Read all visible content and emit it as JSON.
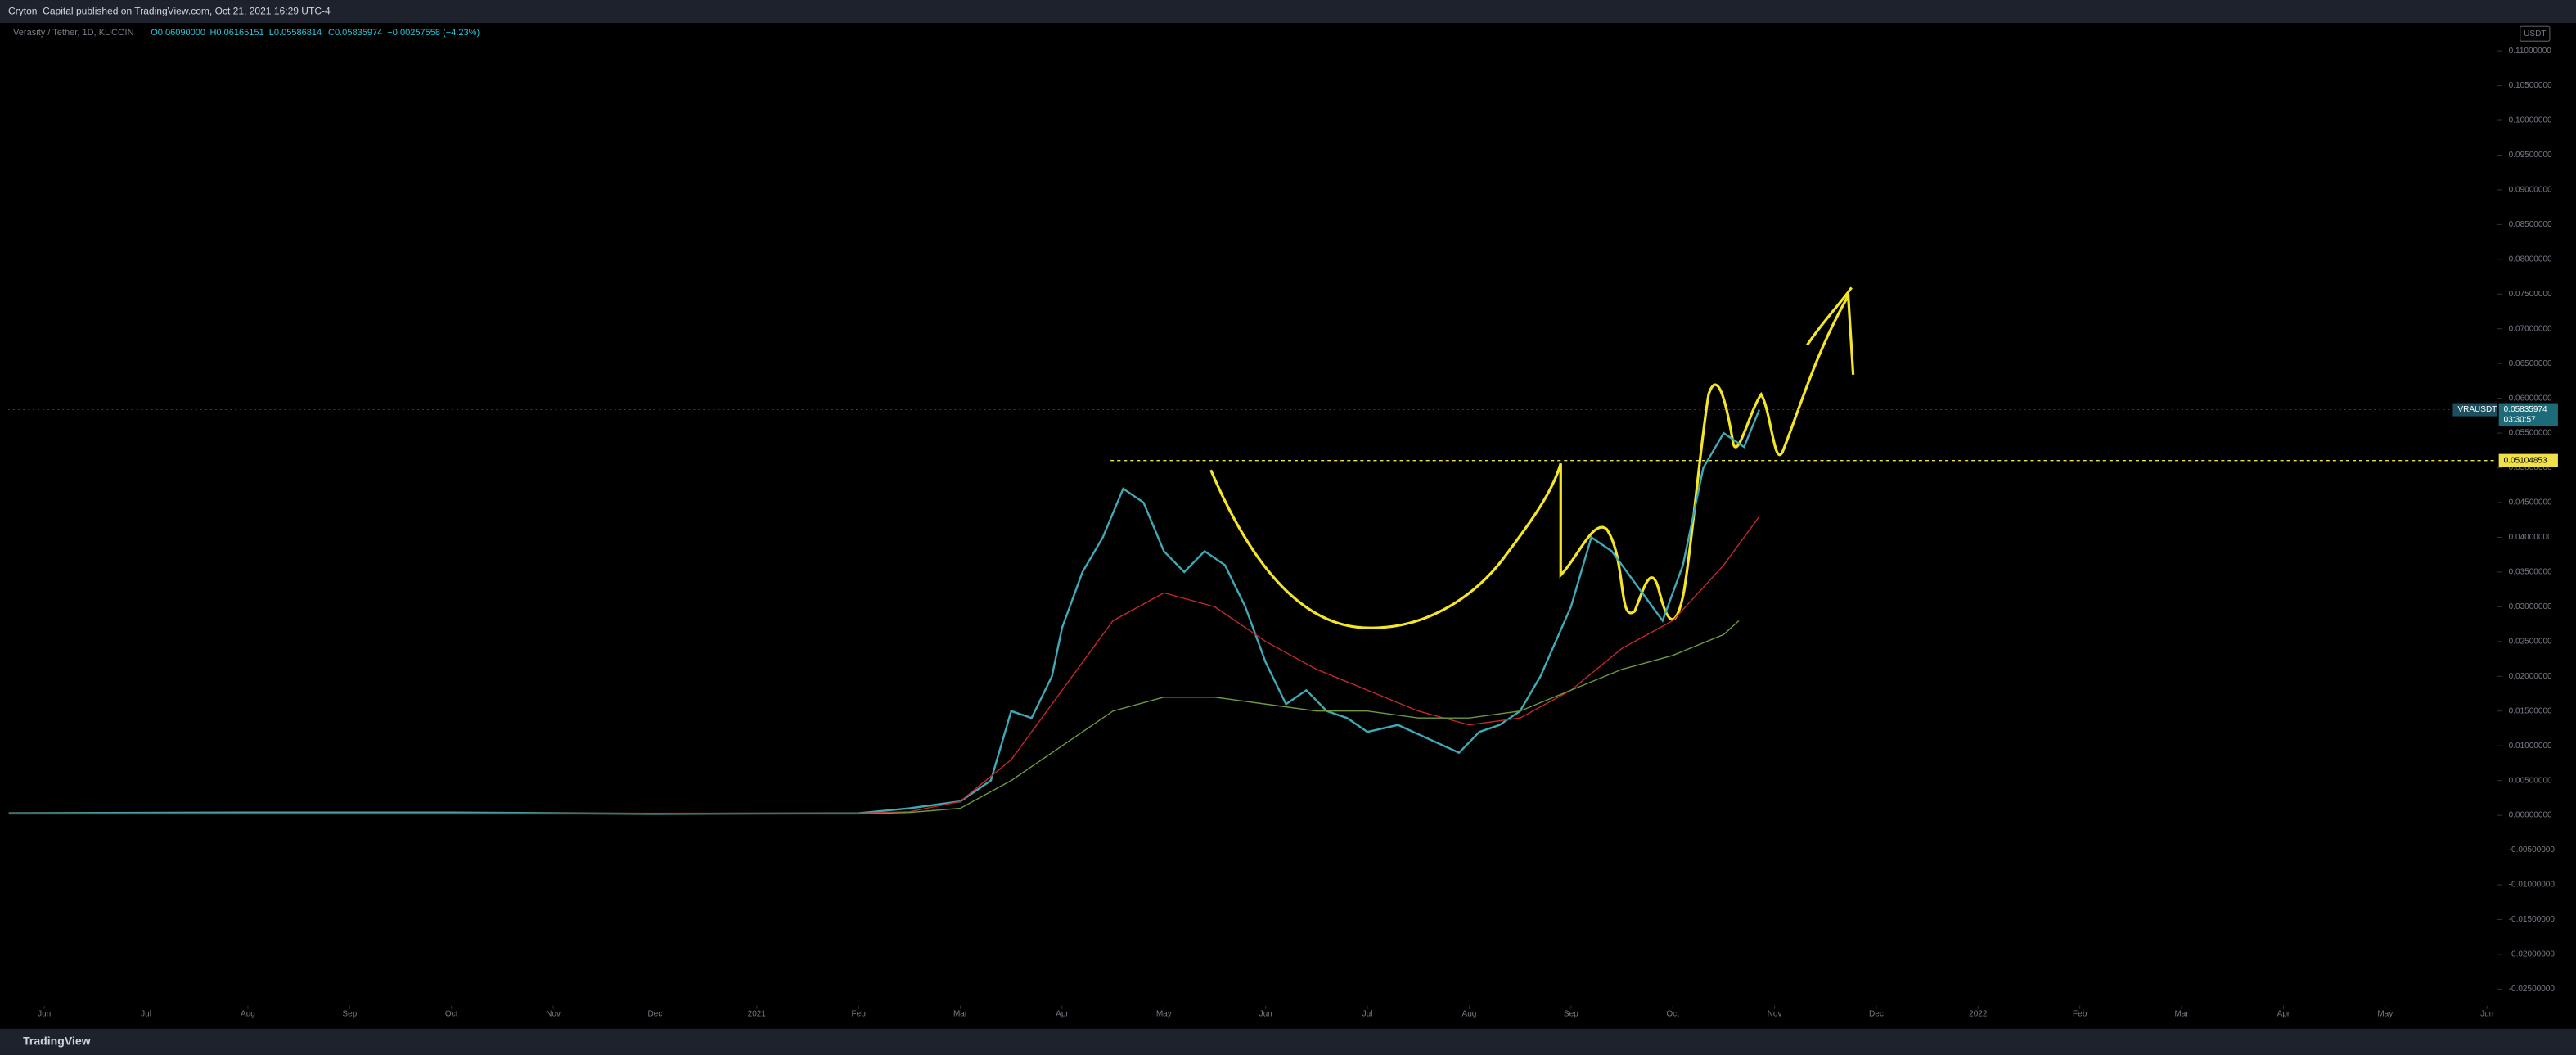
{
  "header": {
    "publisher": "Cryton_Capital published on TradingView.com, Oct 21, 2021 16:29 UTC-4",
    "symbol": "Verasity / Tether, 1D, KUCOIN",
    "ohlc": [
      "O0.06090000",
      "H0.06165151",
      "L0.05586814",
      "C0.05835974",
      "−0.00257558 (−4.23%)"
    ],
    "currency": "USDT",
    "ticker": "VRAUSDT",
    "countdown": "03:30:57",
    "footer": "TradingView"
  },
  "chart_data": {
    "type": "line",
    "xlim": [
      -0.355,
      24.1
    ],
    "ylim": [
      -0.0274,
      0.114
    ],
    "xticks": [
      {
        "value": 0,
        "label": "Jun"
      },
      {
        "value": 1,
        "label": "Jul"
      },
      {
        "value": 2,
        "label": "Aug"
      },
      {
        "value": 3,
        "label": "Sep"
      },
      {
        "value": 4,
        "label": "Oct"
      },
      {
        "value": 5,
        "label": "Nov"
      },
      {
        "value": 6,
        "label": "Dec"
      },
      {
        "value": 7,
        "label": "2021"
      },
      {
        "value": 8,
        "label": "Feb"
      },
      {
        "value": 9,
        "label": "Mar"
      },
      {
        "value": 10,
        "label": "Apr"
      },
      {
        "value": 11,
        "label": "May"
      },
      {
        "value": 12,
        "label": "Jun"
      },
      {
        "value": 13,
        "label": "Jul"
      },
      {
        "value": 14,
        "label": "Aug"
      },
      {
        "value": 15,
        "label": "Sep"
      },
      {
        "value": 16,
        "label": "Oct"
      },
      {
        "value": 17,
        "label": "Nov"
      },
      {
        "value": 18,
        "label": "Dec"
      },
      {
        "value": 19,
        "label": "2022"
      },
      {
        "value": 20,
        "label": "Feb"
      },
      {
        "value": 21,
        "label": "Mar"
      },
      {
        "value": 22,
        "label": "Apr"
      },
      {
        "value": 23,
        "label": "May"
      },
      {
        "value": 24,
        "label": "Jun"
      }
    ],
    "yticks": [
      {
        "value": 0.11,
        "label": "0.11000000"
      },
      {
        "value": 0.105,
        "label": "0.10500000"
      },
      {
        "value": 0.1,
        "label": "0.10000000"
      },
      {
        "value": 0.095,
        "label": "0.09500000"
      },
      {
        "value": 0.09,
        "label": "0.09000000"
      },
      {
        "value": 0.085,
        "label": "0.08500000"
      },
      {
        "value": 0.08,
        "label": "0.08000000"
      },
      {
        "value": 0.075,
        "label": "0.07500000"
      },
      {
        "value": 0.07,
        "label": "0.07000000"
      },
      {
        "value": 0.065,
        "label": "0.06500000"
      },
      {
        "value": 0.06,
        "label": "0.06000000"
      },
      {
        "value": 0.055,
        "label": "0.05500000"
      },
      {
        "value": 0.05,
        "label": "0.05000000"
      },
      {
        "value": 0.045,
        "label": "0.04500000"
      },
      {
        "value": 0.04,
        "label": "0.04000000"
      },
      {
        "value": 0.035,
        "label": "0.03500000"
      },
      {
        "value": 0.03,
        "label": "0.03000000"
      },
      {
        "value": 0.025,
        "label": "0.02500000"
      },
      {
        "value": 0.02,
        "label": "0.02000000"
      },
      {
        "value": 0.015,
        "label": "0.01500000"
      },
      {
        "value": 0.01,
        "label": "0.01000000"
      },
      {
        "value": 0.005,
        "label": "0.00500000"
      },
      {
        "value": 0,
        "label": "0.00000000"
      },
      {
        "value": -0.005,
        "label": "-0.00500000"
      },
      {
        "value": -0.01,
        "label": "-0.01000000"
      },
      {
        "value": -0.015,
        "label": "-0.01500000"
      },
      {
        "value": -0.02,
        "label": "-0.02000000"
      },
      {
        "value": -0.025,
        "label": "-0.02500000"
      }
    ],
    "series": [
      {
        "color": "#3fa9b5",
        "x": [
          -0.35,
          2,
          4,
          6,
          8,
          8.5,
          9,
          9.3,
          9.5,
          9.7,
          9.9,
          10.0,
          10.2,
          10.4,
          10.6,
          10.8,
          11.0,
          11.2,
          11.4,
          11.6,
          11.8,
          12.0,
          12.2,
          12.4,
          12.6,
          12.8,
          13.0,
          13.3,
          13.6,
          13.9,
          14.1,
          14.3,
          14.5,
          14.7,
          15.0,
          15.2,
          15.4,
          15.7,
          15.9,
          16.1,
          16.3,
          16.5,
          16.7,
          16.85
        ],
        "values": [
          0.0003,
          0.0004,
          0.0004,
          0.0002,
          0.0003,
          0.001,
          0.002,
          0.005,
          0.015,
          0.014,
          0.02,
          0.027,
          0.035,
          0.04,
          0.047,
          0.045,
          0.038,
          0.035,
          0.038,
          0.036,
          0.03,
          0.022,
          0.016,
          0.018,
          0.015,
          0.014,
          0.012,
          0.013,
          0.011,
          0.009,
          0.012,
          0.013,
          0.015,
          0.02,
          0.03,
          0.04,
          0.038,
          0.032,
          0.028,
          0.036,
          0.05,
          0.055,
          0.053,
          0.05835974
        ]
      },
      {
        "color": "#c62828",
        "x": [
          -0.35,
          4,
          8,
          8.5,
          9,
          9.5,
          10,
          10.5,
          11,
          11.5,
          12,
          12.5,
          13,
          13.5,
          14,
          14.5,
          15,
          15.5,
          16,
          16.5,
          16.85
        ],
        "values": [
          0.0003,
          0.0003,
          0.0003,
          0.0005,
          0.002,
          0.008,
          0.018,
          0.028,
          0.032,
          0.03,
          0.025,
          0.021,
          0.018,
          0.015,
          0.013,
          0.014,
          0.018,
          0.024,
          0.028,
          0.036,
          0.043
        ]
      },
      {
        "color": "#6b9a3f",
        "x": [
          -0.35,
          4,
          8,
          8.5,
          9,
          9.5,
          10,
          10.5,
          11,
          11.5,
          12,
          12.5,
          13,
          13.5,
          14,
          14.5,
          15,
          15.5,
          16,
          16.5,
          16.65
        ],
        "values": [
          0.0002,
          0.0002,
          0.0002,
          0.0004,
          0.001,
          0.005,
          0.01,
          0.015,
          0.017,
          0.017,
          0.016,
          0.015,
          0.015,
          0.014,
          0.014,
          0.015,
          0.018,
          0.021,
          0.023,
          0.026,
          0.028
        ]
      }
    ],
    "last_price": 0.05835974,
    "hline": {
      "value": 0.05104853,
      "color": "#f0e14a"
    },
    "grid": false
  }
}
